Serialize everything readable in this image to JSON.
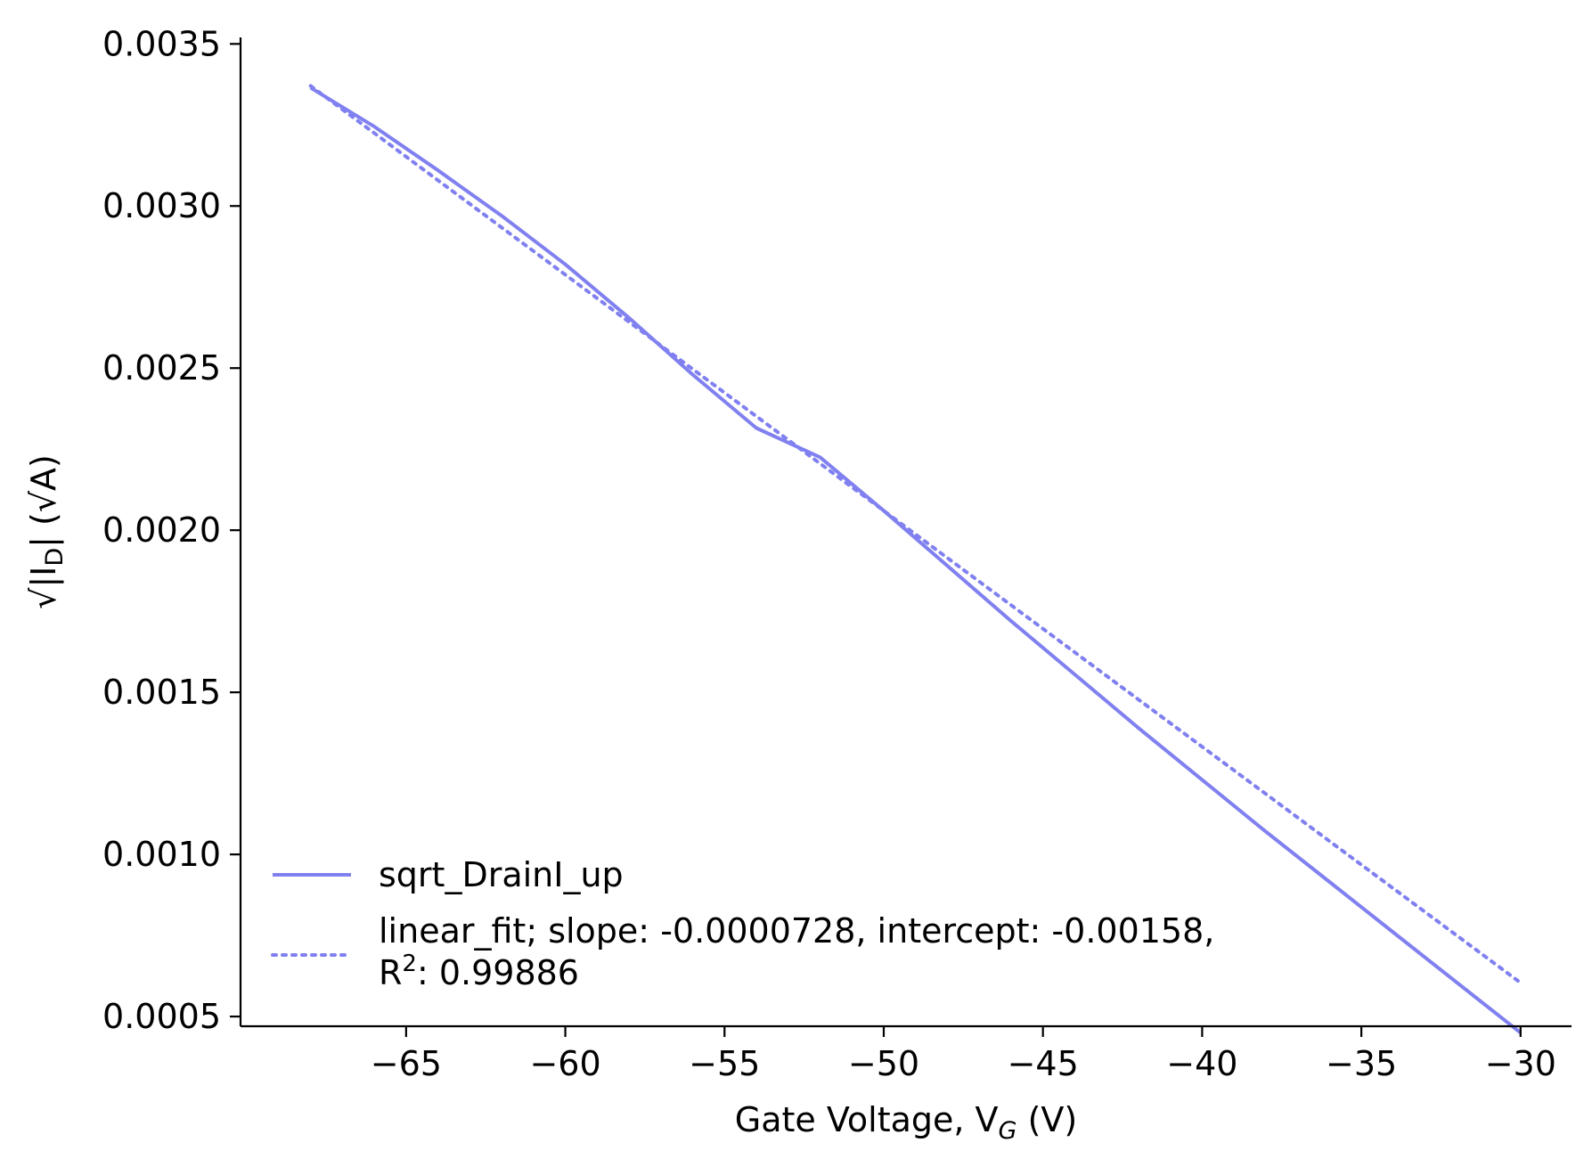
{
  "chart_data": {
    "type": "line",
    "xlabel": {
      "main": "Gate Voltage, V",
      "sub": "G",
      "tail": " (V)"
    },
    "ylabel": {
      "pre": "√|I",
      "sub": "D",
      "tail": "| (√A)"
    },
    "xlim": [
      -70.2,
      -28.4
    ],
    "ylim": [
      0.00047,
      0.00352
    ],
    "xticks": [
      -65,
      -60,
      -55,
      -50,
      -45,
      -40,
      -35,
      -30
    ],
    "xtick_labels": [
      "−65",
      "−60",
      "−55",
      "−50",
      "−45",
      "−40",
      "−35",
      "−30"
    ],
    "yticks": [
      0.0005,
      0.001,
      0.0015,
      0.002,
      0.0025,
      0.003,
      0.0035
    ],
    "ytick_labels": [
      "0.0005",
      "0.0010",
      "0.0015",
      "0.0020",
      "0.0025",
      "0.0030",
      "0.0035"
    ],
    "grid": false,
    "legend": {
      "placement": "lower-left",
      "line2_prefix": "R",
      "line2_sup": "2",
      "line2_suffix": ": 0.99886"
    },
    "colors": {
      "data": "#8080f0",
      "fit": "#8080f0"
    },
    "series": [
      {
        "name": "sqrt_DrainI_up",
        "style": "solid",
        "x": [
          -68,
          -66,
          -64,
          -62,
          -60,
          -58,
          -56,
          -54,
          -52,
          -50,
          -48,
          -46,
          -44,
          -42,
          -40,
          -38,
          -36,
          -34,
          -32,
          -30
        ],
        "y": [
          0.003365,
          0.003245,
          0.00311,
          0.00297,
          0.00282,
          0.002655,
          0.00248,
          0.002315,
          0.002225,
          0.00206,
          0.00189,
          0.00172,
          0.001555,
          0.00139,
          0.00123,
          0.00107,
          0.000915,
          0.00076,
          0.000605,
          0.00045
        ]
      },
      {
        "name": "linear_fit; slope: -0.0000728, intercept: -0.00158,",
        "style": "dotted",
        "x": [
          -68,
          -30
        ],
        "y": [
          0.0033704,
          0.000604
        ]
      }
    ]
  }
}
